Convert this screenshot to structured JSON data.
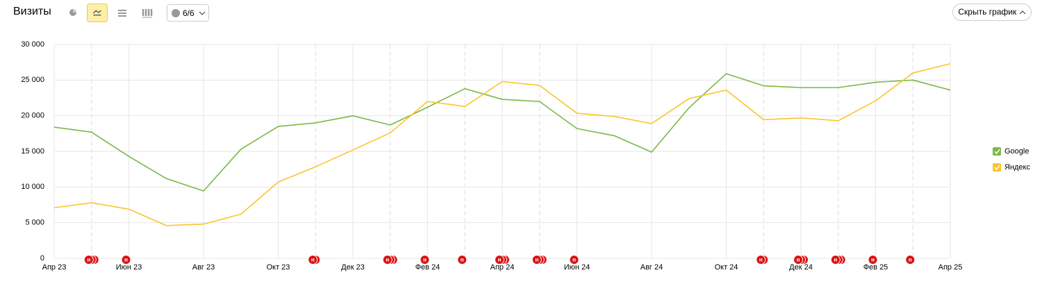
{
  "header": {
    "title": "Визиты",
    "filter_count": "6/6",
    "hide_button": "Скрыть график"
  },
  "chart_data": {
    "type": "line",
    "categories": [
      "Апр 23",
      null,
      "Июн 23",
      null,
      "Авг 23",
      null,
      "Окт 23",
      null,
      "Дек 23",
      null,
      "Фев 24",
      null,
      "Апр 24",
      null,
      "Июн 24",
      null,
      "Авг 24",
      null,
      "Окт 24",
      null,
      "Дек 24",
      null,
      "Фев 25",
      null,
      "Апр 25"
    ],
    "series": [
      {
        "name": "Google",
        "color": "#7ab845",
        "values": [
          18400,
          17700,
          14300,
          11200,
          9450,
          15300,
          18500,
          19000,
          20000,
          18700,
          21200,
          23800,
          22300,
          22000,
          18200,
          17200,
          14900,
          21100,
          25900,
          24200,
          23950,
          23950,
          24700,
          25000,
          23600
        ]
      },
      {
        "name": "Яндекс",
        "color": "#fcc42b",
        "values": [
          7100,
          7800,
          6900,
          4600,
          4800,
          6200,
          10700,
          12850,
          15200,
          17600,
          22000,
          21300,
          24800,
          24250,
          20350,
          19900,
          18900,
          22400,
          23600,
          19450,
          19700,
          19300,
          22100,
          26000,
          27300
        ]
      }
    ],
    "ylim": [
      0,
      30000
    ],
    "yticks": [
      0,
      {
        "value": 5000,
        "label": "5 000"
      },
      {
        "value": 10000,
        "label": "10 000"
      },
      {
        "value": 15000,
        "label": "15 000"
      },
      {
        "value": 20000,
        "label": "20 000"
      },
      {
        "value": 25000,
        "label": "25 000"
      },
      {
        "value": 30000,
        "label": "30 000"
      }
    ],
    "grid": true,
    "legend": "right",
    "annotation_label": "н",
    "annotations": [
      {
        "index": 1,
        "count": 3
      },
      {
        "index": 2,
        "count": 1
      },
      {
        "index": 7,
        "count": 2
      },
      {
        "index": 9,
        "count": 3
      },
      {
        "index": 10,
        "count": 1
      },
      {
        "index": 11,
        "count": 1
      },
      {
        "index": 12,
        "count": 3
      },
      {
        "index": 13,
        "count": 3
      },
      {
        "index": 14,
        "count": 1
      },
      {
        "index": 19,
        "count": 2
      },
      {
        "index": 20,
        "count": 3
      },
      {
        "index": 21,
        "count": 3
      },
      {
        "index": 22,
        "count": 1
      },
      {
        "index": 23,
        "count": 1
      }
    ]
  }
}
